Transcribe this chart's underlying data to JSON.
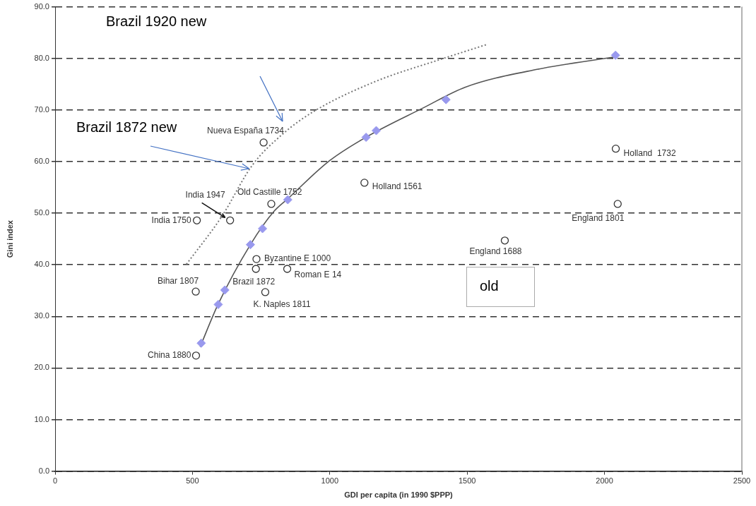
{
  "chart_data": {
    "type": "scatter",
    "xlabel": "GDI per capita (in 1990 $PPP)",
    "ylabel": "Gini index",
    "xlim": [
      0,
      2500
    ],
    "xticks": [
      0,
      500,
      1000,
      1500,
      2000,
      2500
    ],
    "ylim": [
      0,
      90
    ],
    "yticks": [
      {
        "value": 0,
        "label": "0.0"
      },
      {
        "value": 10,
        "label": "10.0"
      },
      {
        "value": 20,
        "label": "20.0"
      },
      {
        "value": 30,
        "label": "30.0"
      },
      {
        "value": 40,
        "label": "40.0"
      },
      {
        "value": 50,
        "label": "50.0"
      },
      {
        "value": 60,
        "label": "60.0"
      },
      {
        "value": 70,
        "label": "70.0"
      },
      {
        "value": 80,
        "label": "80.0"
      },
      {
        "value": 90,
        "label": "90.0"
      }
    ],
    "grid": "y",
    "legend": false,
    "series": [
      {
        "marker": "circle",
        "color": "#333333",
        "x": [
          759,
          787,
          516,
          637,
          733,
          731,
          845,
          512,
          765,
          513,
          1126,
          1637,
          2048,
          2041
        ],
        "values": [
          63.7,
          51.8,
          48.6,
          48.6,
          41.1,
          39.2,
          39.2,
          34.8,
          34.7,
          22.4,
          55.9,
          44.7,
          51.8,
          62.5
        ],
        "value_labels": [
          "Nueva España 1734",
          "Old Castille 1752",
          "India 1750",
          "India 1947",
          "Byzantine E 1000",
          "Brazil 1872",
          "Roman E 14",
          "Bihar 1807",
          "K. Naples 1811",
          "China 1880",
          "Holland 1561",
          "England 1688",
          "England 1801",
          "Holland  1732"
        ]
      },
      {
        "marker": "diamond",
        "color": "#9999ee",
        "x": [
          532,
          594,
          618,
          711,
          755,
          847,
          1132,
          1169,
          1423,
          2040
        ],
        "values": [
          24.8,
          32.3,
          35.1,
          43.9,
          47.0,
          52.6,
          64.7,
          66.0,
          72.0,
          80.6
        ]
      },
      {
        "type": "line",
        "marker": "none",
        "line_style": "solid",
        "color": "#555555",
        "x": [
          528,
          593,
          711,
          796,
          845,
          1000,
          1131,
          1340,
          1492,
          1758,
          2041
        ],
        "values": [
          24.1,
          32.3,
          43.9,
          50.3,
          52.7,
          60.2,
          64.7,
          70.4,
          74.4,
          77.9,
          80.3
        ]
      },
      {
        "type": "line",
        "marker": "none",
        "line_style": "dotted",
        "color": "#777777",
        "x": [
          478,
          606,
          718,
          830,
          941,
          1165,
          1397,
          1572
        ],
        "values": [
          40.1,
          49.3,
          59.3,
          65.4,
          69.7,
          75.5,
          79.7,
          82.7
        ]
      }
    ],
    "annotations": [
      "Brazil 1920 new",
      {
        "text": "Brazil 1872 new",
        "x": 714,
        "y": 58.9
      },
      "old"
    ]
  }
}
